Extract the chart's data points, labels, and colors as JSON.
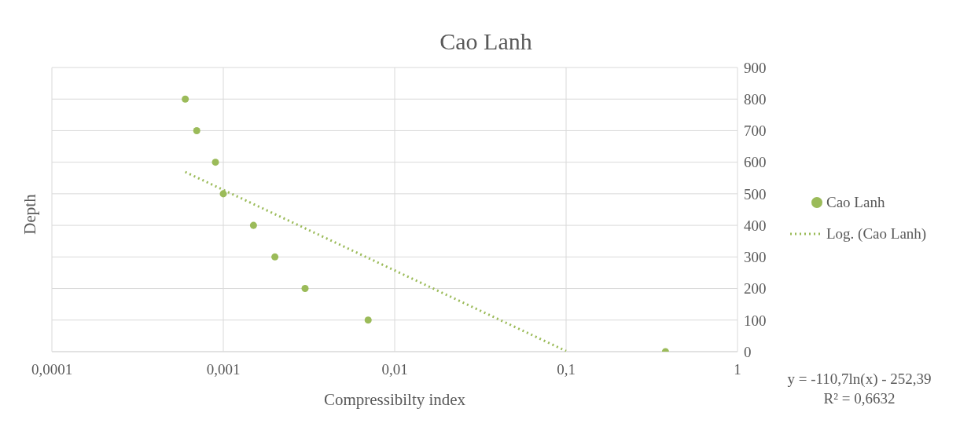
{
  "chart_data": {
    "type": "scatter",
    "title": "Cao Lanh",
    "xlabel": "Compressibilty index",
    "ylabel": "Depth",
    "log": "x",
    "xlim": [
      0.0001,
      1
    ],
    "xticks": [
      {
        "value": 0.0001,
        "label": "0,0001"
      },
      {
        "value": 0.001,
        "label": "0,001"
      },
      {
        "value": 0.01,
        "label": "0,01"
      },
      {
        "value": 0.1,
        "label": "0,1"
      },
      {
        "value": 1,
        "label": "1"
      }
    ],
    "ylim": [
      0,
      900
    ],
    "yticks": [
      0,
      100,
      200,
      300,
      400,
      500,
      600,
      700,
      800,
      900
    ],
    "grid": true,
    "legend": "right",
    "series": [
      {
        "name": "Cao Lanh",
        "color": "#9bbb59",
        "marker": "circle",
        "x": [
          0.0006,
          0.0007,
          0.0009,
          0.001,
          0.0015,
          0.002,
          0.003,
          0.007,
          0.38
        ],
        "values": [
          800,
          700,
          600,
          500,
          400,
          300,
          200,
          100,
          0
        ]
      },
      {
        "name": "Log. (Cao Lanh)",
        "type": "line",
        "line_style": "dotted",
        "marker": "none",
        "color": "#9bbb59",
        "x": [
          0.0006,
          0.1
        ],
        "values": [
          569,
          2
        ]
      }
    ],
    "annotations": [
      "y = -110,7ln(x) - 252,39",
      "R² = 0,6632"
    ]
  }
}
